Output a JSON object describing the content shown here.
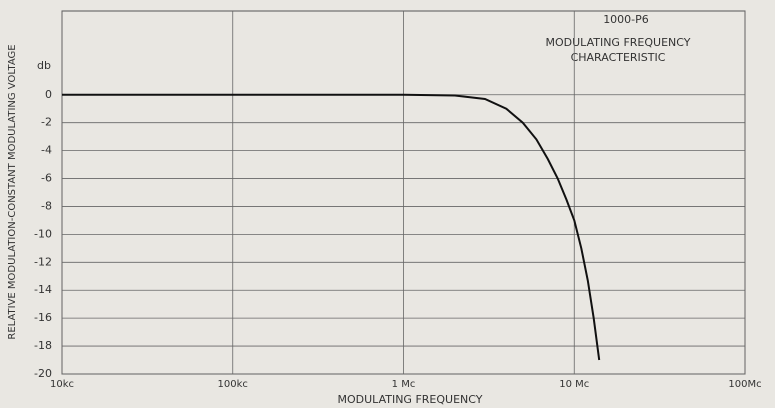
{
  "chart_data": {
    "type": "line",
    "annotations": [
      "1000-P6",
      "MODULATING FREQUENCY",
      "CHARACTERISTIC"
    ],
    "y_unit": "db",
    "x_label": "MODULATING FREQUENCY",
    "y_label": "RELATIVE MODULATION-CONSTANT MODULATING VOLTAGE",
    "x": [
      10000,
      1000000,
      2000000,
      3000000,
      4000000,
      5000000,
      6000000,
      7000000,
      8000000,
      9000000,
      10000000,
      11000000,
      12000000,
      13000000,
      14000000
    ],
    "series": [
      {
        "color": "#111111",
        "values": [
          0,
          0,
          -0.05,
          -0.3,
          -1.0,
          -2.0,
          -3.2,
          -4.6,
          -6.0,
          -7.5,
          -9,
          -11,
          -13.3,
          -16,
          -19
        ]
      }
    ],
    "xscale": "log",
    "xlim": [
      10000,
      100000000
    ],
    "xticks": [
      {
        "value": 10000,
        "label": "10kc"
      },
      {
        "value": 100000,
        "label": "100kc"
      },
      {
        "value": 1000000,
        "label": "1 Mc"
      },
      {
        "value": 10000000,
        "label": "10 Mc"
      },
      {
        "value": 100000000,
        "label": "100Mc"
      }
    ],
    "ylim": [
      -20,
      6
    ],
    "yticks": [
      0,
      -2,
      -4,
      -6,
      -8,
      -10,
      -12,
      -14,
      -16,
      -18,
      -20
    ],
    "grid": true
  }
}
